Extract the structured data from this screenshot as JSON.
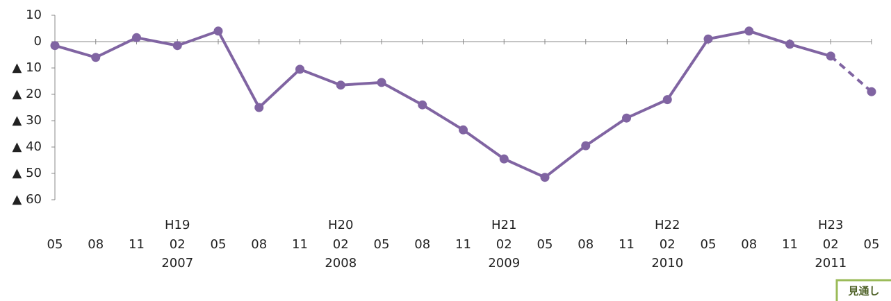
{
  "chart_data": {
    "type": "line",
    "categories": [
      "05",
      "08",
      "11",
      "02",
      "05",
      "08",
      "11",
      "02",
      "05",
      "08",
      "11",
      "02",
      "05",
      "08",
      "11",
      "02",
      "05",
      "08",
      "11",
      "02",
      "05"
    ],
    "era_labels": [
      null,
      null,
      null,
      "H19",
      null,
      null,
      null,
      "H20",
      null,
      null,
      null,
      "H21",
      null,
      null,
      null,
      "H22",
      null,
      null,
      null,
      "H23",
      null
    ],
    "year_labels": [
      null,
      null,
      null,
      "2007",
      null,
      null,
      null,
      "2008",
      null,
      null,
      null,
      "2009",
      null,
      null,
      null,
      "2010",
      null,
      null,
      null,
      "2011",
      null
    ],
    "series": [
      {
        "color": "#8064a2",
        "dashed": false,
        "values": [
          -1.5,
          -6,
          1.5,
          -1.5,
          4,
          -25,
          -10.5,
          -16.5,
          -15.5,
          -24,
          -33.5,
          -44.5,
          -51.5,
          -39.5,
          -29,
          -22,
          1,
          4,
          -1,
          -5.5,
          null
        ]
      },
      {
        "name": "見通し",
        "color": "#8064a2",
        "dashed": true,
        "values": [
          null,
          null,
          null,
          null,
          null,
          null,
          null,
          null,
          null,
          null,
          null,
          null,
          null,
          null,
          null,
          null,
          null,
          null,
          null,
          -5.5,
          -19
        ]
      }
    ],
    "ylim": [
      -60,
      10
    ],
    "yticks": [
      10,
      0,
      {
        "value": -10,
        "label": "▲ 10"
      },
      {
        "value": -20,
        "label": "▲ 20"
      },
      {
        "value": -30,
        "label": "▲ 30"
      },
      {
        "value": -40,
        "label": "▲ 40"
      },
      {
        "value": -50,
        "label": "▲ 50"
      },
      {
        "value": -60,
        "label": "▲ 60"
      }
    ],
    "grid": false
  }
}
